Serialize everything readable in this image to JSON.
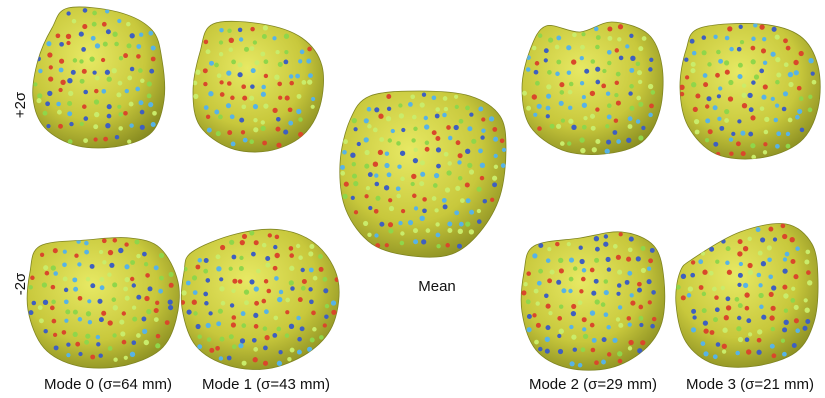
{
  "labels": {
    "plus": "+2σ",
    "minus": "-2σ",
    "mean": "Mean",
    "mode0": "Mode 0 (σ=64 mm)",
    "mode1": "Mode 1 (σ=43 mm)",
    "mode2": "Mode 2 (σ=29 mm)",
    "mode3": "Mode 3 (σ=21 mm)"
  },
  "colors": {
    "surface_light": "#e2e45c",
    "surface_mid": "#c4c43a",
    "surface_dark": "#7f8420",
    "point_red": "#d9472b",
    "point_blue": "#3e5fc0",
    "point_green": "#8fd64a",
    "point_lightblue": "#57b3e6",
    "point_lightgreen": "#c9ec6b"
  }
}
